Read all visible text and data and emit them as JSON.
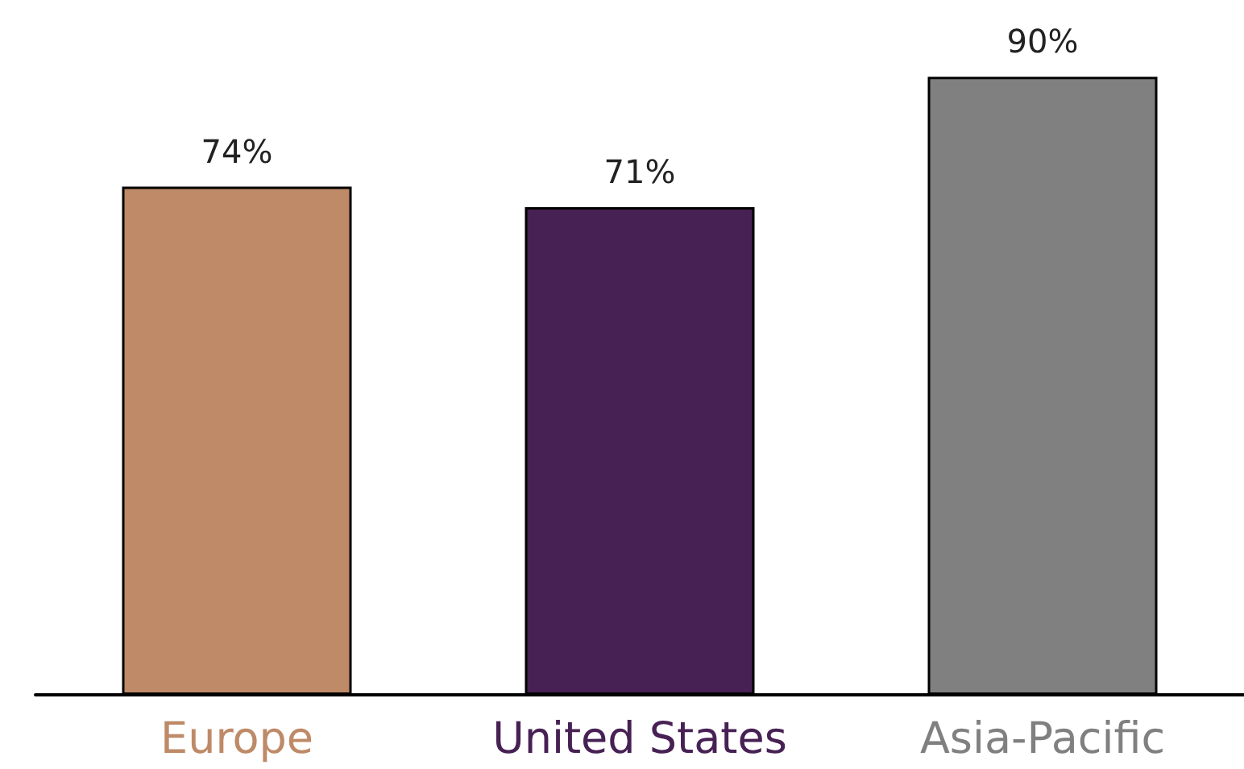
{
  "chart_data": {
    "type": "bar",
    "categories": [
      "Europe",
      "United States",
      "Asia-Pacific"
    ],
    "values": [
      74,
      71,
      90
    ],
    "colors": [
      "#be8a67",
      "#472154",
      "#808080"
    ],
    "data_labels": true,
    "value_labels": [
      "74%",
      "71%",
      "90%"
    ]
  }
}
